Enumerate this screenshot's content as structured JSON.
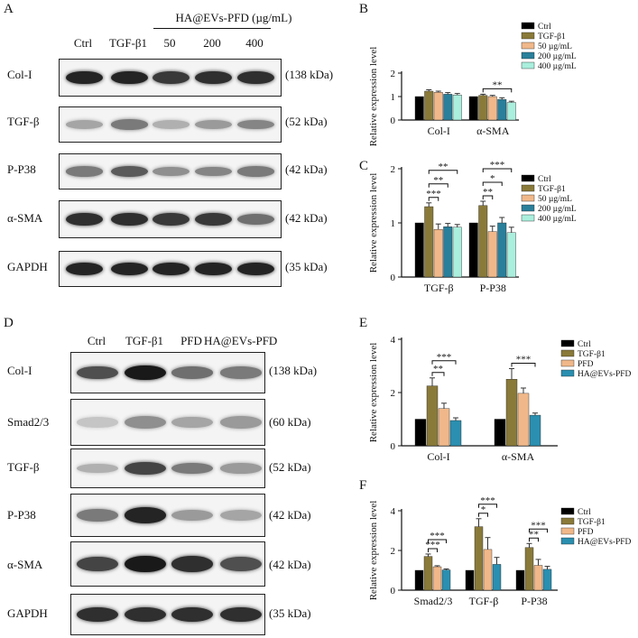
{
  "panelA": {
    "label": "A",
    "group_header": "HA@EVs-PFD (µg/mL)",
    "lanes": [
      "Ctrl",
      "TGF-β1",
      "50",
      "200",
      "400"
    ],
    "rows": [
      {
        "name": "Col-I",
        "kda": "(138 kDa)",
        "intensity": [
          0.95,
          0.95,
          0.85,
          0.9,
          0.9
        ]
      },
      {
        "name": "TGF-β",
        "kda": "(52 kDa)",
        "intensity": [
          0.35,
          0.55,
          0.3,
          0.4,
          0.5
        ]
      },
      {
        "name": "P-P38",
        "kda": "(42 kDa)",
        "intensity": [
          0.55,
          0.7,
          0.45,
          0.5,
          0.55
        ]
      },
      {
        "name": "α-SMA",
        "kda": "(42 kDa)",
        "intensity": [
          0.9,
          0.9,
          0.85,
          0.85,
          0.6
        ]
      },
      {
        "name": "GAPDH",
        "kda": "(35 kDa)",
        "intensity": [
          0.95,
          0.95,
          0.95,
          0.95,
          0.95
        ]
      }
    ]
  },
  "panelD": {
    "label": "D",
    "lanes": [
      "Ctrl",
      "TGF-β1",
      "PFD",
      "HA@EVs-PFD"
    ],
    "rows": [
      {
        "name": "Col-I",
        "kda": "(138 kDa)",
        "intensity": [
          0.75,
          1.0,
          0.6,
          0.55
        ]
      },
      {
        "name": "Smad2/3",
        "kda": "(60 kDa)",
        "intensity": [
          0.2,
          0.45,
          0.35,
          0.4
        ]
      },
      {
        "name": "TGF-β",
        "kda": "(52 kDa)",
        "intensity": [
          0.3,
          0.8,
          0.55,
          0.4
        ]
      },
      {
        "name": "P-P38",
        "kda": "(42 kDa)",
        "intensity": [
          0.55,
          0.95,
          0.4,
          0.35
        ]
      },
      {
        "name": "α-SMA",
        "kda": "(42 kDa)",
        "intensity": [
          0.8,
          1.0,
          0.9,
          0.75
        ]
      },
      {
        "name": "GAPDH",
        "kda": "(35 kDa)",
        "intensity": [
          0.9,
          0.9,
          0.9,
          0.9
        ]
      }
    ]
  },
  "chart_data": [
    {
      "panel": "B",
      "type": "bar",
      "categories": [
        "Col-I",
        "α-SMA"
      ],
      "series": [
        {
          "name": "Ctrl",
          "values": [
            1.0,
            1.0
          ],
          "errors": [
            0,
            0
          ]
        },
        {
          "name": "TGF-β1",
          "values": [
            1.23,
            1.05
          ],
          "errors": [
            0.06,
            0.05
          ]
        },
        {
          "name": "50 µg/mL",
          "values": [
            1.18,
            1.0
          ],
          "errors": [
            0.05,
            0.05
          ]
        },
        {
          "name": "200 µg/mL",
          "values": [
            1.1,
            0.88
          ],
          "errors": [
            0.07,
            0.07
          ]
        },
        {
          "name": "400 µg/mL",
          "values": [
            1.07,
            0.75
          ],
          "errors": [
            0.06,
            0.05
          ]
        }
      ],
      "ylabel": "Relative expression level",
      "ylim": [
        0,
        2
      ],
      "yticks": [
        "0",
        "1",
        "2"
      ],
      "annotations": [
        {
          "category": 1,
          "from": 1,
          "to": 4,
          "text": "**"
        }
      ]
    },
    {
      "panel": "C",
      "type": "bar",
      "categories": [
        "TGF-β",
        "P-P38"
      ],
      "series": [
        {
          "name": "Ctrl",
          "values": [
            1.0,
            1.0
          ],
          "errors": [
            0,
            0
          ]
        },
        {
          "name": "TGF-β1",
          "values": [
            1.3,
            1.32
          ],
          "errors": [
            0.07,
            0.08
          ]
        },
        {
          "name": "50 µg/mL",
          "values": [
            0.88,
            0.84
          ],
          "errors": [
            0.1,
            0.1
          ]
        },
        {
          "name": "200 µg/mL",
          "values": [
            0.93,
            1.0
          ],
          "errors": [
            0.06,
            0.1
          ]
        },
        {
          "name": "400 µg/mL",
          "values": [
            0.92,
            0.82
          ],
          "errors": [
            0.05,
            0.1
          ]
        }
      ],
      "ylabel": "Relative expression level",
      "ylim": [
        0,
        2
      ],
      "yticks": [
        "0",
        "1",
        "2"
      ],
      "annotations": [
        {
          "category": 0,
          "from": 1,
          "to": 2,
          "text": "***"
        },
        {
          "category": 0,
          "from": 1,
          "to": 3,
          "text": "**"
        },
        {
          "category": 0,
          "from": 1,
          "to": 4,
          "text": "**"
        },
        {
          "category": 1,
          "from": 1,
          "to": 2,
          "text": "**"
        },
        {
          "category": 1,
          "from": 1,
          "to": 3,
          "text": "*"
        },
        {
          "category": 1,
          "from": 1,
          "to": 4,
          "text": "***"
        }
      ]
    },
    {
      "panel": "E",
      "type": "bar",
      "categories": [
        "Col-I",
        "α-SMA"
      ],
      "series": [
        {
          "name": "Ctrl",
          "values": [
            1.0,
            1.0
          ],
          "errors": [
            0,
            0
          ]
        },
        {
          "name": "TGF-β1",
          "values": [
            2.25,
            2.5
          ],
          "errors": [
            0.3,
            0.4
          ]
        },
        {
          "name": "PFD",
          "values": [
            1.4,
            1.97
          ],
          "errors": [
            0.2,
            0.2
          ]
        },
        {
          "name": "HA@EVs-PFD",
          "values": [
            0.95,
            1.15
          ],
          "errors": [
            0.1,
            0.08
          ]
        }
      ],
      "ylabel": "Relative expression level",
      "ylim": [
        0,
        4
      ],
      "yticks": [
        "0",
        "2",
        "4"
      ],
      "annotations": [
        {
          "category": 0,
          "from": 1,
          "to": 2,
          "text": "**"
        },
        {
          "category": 0,
          "from": 1,
          "to": 3,
          "text": "***"
        },
        {
          "category": 1,
          "from": 1,
          "to": 3,
          "text": "***"
        }
      ]
    },
    {
      "panel": "F",
      "type": "bar",
      "categories": [
        "Smad2/3",
        "TGF-β",
        "P-P38"
      ],
      "series": [
        {
          "name": "Ctrl",
          "values": [
            1.0,
            1.0,
            1.0
          ],
          "errors": [
            0,
            0,
            0
          ]
        },
        {
          "name": "TGF-β1",
          "values": [
            1.7,
            3.2,
            2.15
          ],
          "errors": [
            0.12,
            0.4,
            0.2
          ]
        },
        {
          "name": "PFD",
          "values": [
            1.18,
            2.05,
            1.25
          ],
          "errors": [
            0.05,
            0.6,
            0.3
          ]
        },
        {
          "name": "HA@EVs-PFD",
          "values": [
            1.02,
            1.3,
            1.05
          ],
          "errors": [
            0.05,
            0.35,
            0.15
          ]
        }
      ],
      "ylabel": "Relative expression level",
      "ylim": [
        0,
        4
      ],
      "yticks": [
        "0",
        "2",
        "4"
      ],
      "annotations": [
        {
          "category": 0,
          "from": 1,
          "to": 2,
          "text": "***"
        },
        {
          "category": 0,
          "from": 1,
          "to": 3,
          "text": "***"
        },
        {
          "category": 1,
          "from": 1,
          "to": 2,
          "text": "*"
        },
        {
          "category": 1,
          "from": 1,
          "to": 3,
          "text": "***"
        },
        {
          "category": 2,
          "from": 1,
          "to": 2,
          "text": "**"
        },
        {
          "category": 2,
          "from": 1,
          "to": 3,
          "text": "***"
        }
      ]
    }
  ],
  "colors": {
    "five_groups": [
      "#000000",
      "#8a7a3a",
      "#f0b88a",
      "#2a7f9a",
      "#aaeedd"
    ],
    "four_groups": [
      "#000000",
      "#8a7a3a",
      "#f0b88a",
      "#2a8fb0"
    ]
  }
}
